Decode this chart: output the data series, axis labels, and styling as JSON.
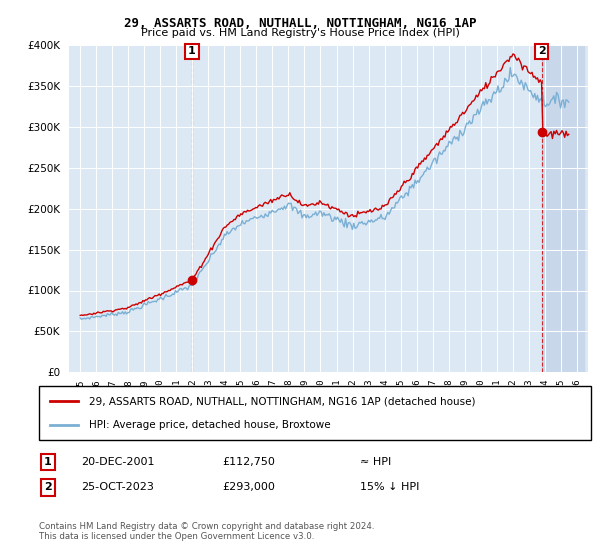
{
  "title": "29, ASSARTS ROAD, NUTHALL, NOTTINGHAM, NG16 1AP",
  "subtitle": "Price paid vs. HM Land Registry's House Price Index (HPI)",
  "ylim": [
    0,
    400000
  ],
  "yticks": [
    0,
    50000,
    100000,
    150000,
    200000,
    250000,
    300000,
    350000,
    400000
  ],
  "sale1_time": 2001.97,
  "sale1_price": 112750,
  "sale2_time": 2023.81,
  "sale2_price": 293000,
  "hpi_color": "#7bafd4",
  "sale_color": "#cc0000",
  "background_color": "#dce9f5",
  "hatch_color": "#c8d8ea",
  "legend_label_sale": "29, ASSARTS ROAD, NUTHALL, NOTTINGHAM, NG16 1AP (detached house)",
  "legend_label_hpi": "HPI: Average price, detached house, Broxtowe",
  "annotation1_date": "20-DEC-2001",
  "annotation1_price": "£112,750",
  "annotation1_hpi": "≈ HPI",
  "annotation2_date": "25-OCT-2023",
  "annotation2_price": "£293,000",
  "annotation2_hpi": "15% ↓ HPI",
  "footnote": "Contains HM Land Registry data © Crown copyright and database right 2024.\nThis data is licensed under the Open Government Licence v3.0."
}
